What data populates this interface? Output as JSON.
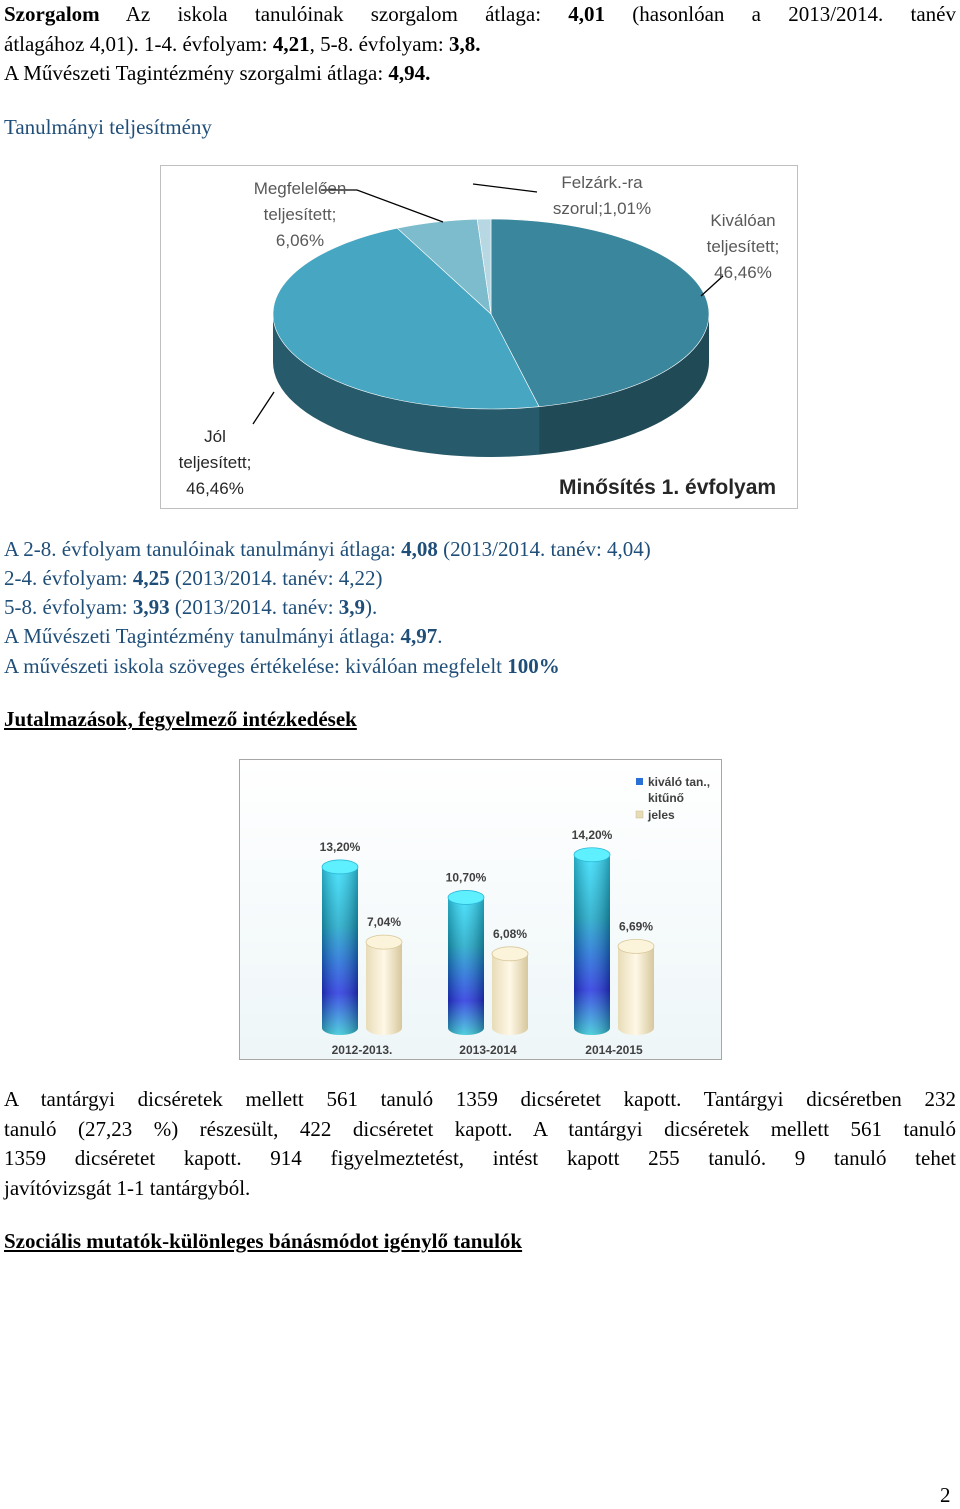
{
  "szorgalom": {
    "title": "Szorgalom",
    "line1_rest": "Az iskola tanulóinak szorgalom átlaga: ",
    "avg": "4,01",
    "line1_tail": " (hasonlóan a 2013/2014. tanév",
    "line2_a": "átlagához 4,01).  1-4. évfolyam: ",
    "v14": "4,21",
    "line2_b": ", 5-8. évfolyam: ",
    "v58": "3,8.",
    "line3_a": "A Művészeti Tagintézmény szorgalmi átlaga: ",
    "v_art": "4,94."
  },
  "tanulmanyi_heading": "Tanulmányi teljesítmény",
  "pie_chart": {
    "chart_data": {
      "type": "pie",
      "title": "Minősítés 1. évfolyam",
      "slices": [
        {
          "label": "Kiválóan teljesített; 46,46%",
          "value": 46.46,
          "color": "#3a869c"
        },
        {
          "label": "Jól teljesített; 46,46%",
          "value": 46.46,
          "color": "#47a6c2"
        },
        {
          "label": "Megfelelően teljesített; 6,06%",
          "value": 6.06,
          "color": "#7dbccd"
        },
        {
          "label": "Felzárk.-ra szorul;1,01%",
          "value": 1.01,
          "color": "#b7d8e2"
        }
      ]
    },
    "labels": {
      "megfelelo_1": "Megfelelően",
      "megfelelo_2": "teljesített;",
      "megfelelo_3": "6,06%",
      "felzark_1": "Felzárk.-ra",
      "felzark_2": "szorul;1,01%",
      "kivalo_1": "Kiválóan",
      "kivalo_2": "teljesített;",
      "kivalo_3": "46,46%",
      "jol_1": "Jól",
      "jol_2": "teljesített;",
      "jol_3": "46,46%"
    }
  },
  "tanulmanyi": {
    "l1_a": "A 2-8. évfolyam tanulóinak tanulmányi átlaga: ",
    "l1_v": "4,08",
    "l1_b": " (2013/2014. tanév: 4,04)",
    "l2_a": "2-4. évfolyam: ",
    "l2_v": "4,25",
    "l2_b": " (2013/2014. tanév: 4,22)",
    "l3_a": "5-8. évfolyam: ",
    "l3_v": "3,93",
    "l3_b": " (2013/2014. tanév: ",
    "l3_v2": "3,9",
    "l3_c": ").",
    "l4_a": "A Művészeti Tagintézmény tanulmányi átlaga: ",
    "l4_v": "4,97",
    "l4_b": ".",
    "l5_a": "A művészeti iskola szöveges értékelése: kiválóan megfelelt ",
    "l5_v": "100%"
  },
  "jutalmazas_heading": "Jutalmazások, fegyelmező intézkedések",
  "bar_chart": {
    "chart_data": {
      "type": "bar",
      "categories": [
        "2012-2013.",
        "2013-2014",
        "2014-2015"
      ],
      "series": [
        {
          "name": "kiváló tan., kitűnő",
          "values": [
            13.2,
            10.7,
            14.2
          ],
          "labels": [
            "13,20%",
            "10,70%",
            "14,20%"
          ]
        },
        {
          "name": "jeles",
          "values": [
            7.04,
            6.08,
            6.69
          ],
          "labels": [
            "7,04%",
            "6,08%",
            "6,69%"
          ]
        }
      ],
      "ylim": [
        0,
        16
      ]
    },
    "legend": {
      "s1_line1": "kiváló tan.,",
      "s1_line2": "kitűnő",
      "s2": "jeles"
    }
  },
  "paragraph": [
    "A tantárgyi dicséretek mellett 561 tanuló 1359 dicséretet kapott. Tantárgyi dicséretben 232",
    "tanuló (27,23 %) részesült, 422 dicséretet kapott. A tantárgyi dicséretek mellett 561 tanuló",
    "1359 dicséretet kapott. 914 figyelmeztetést, intést kapott 255 tanuló. 9 tanuló tehet",
    "javítóvizsgát 1-1 tantárgyból."
  ],
  "szocialis_heading": "Szociális mutatók-különleges bánásmódot igénylő tanulók",
  "page_number": "2"
}
